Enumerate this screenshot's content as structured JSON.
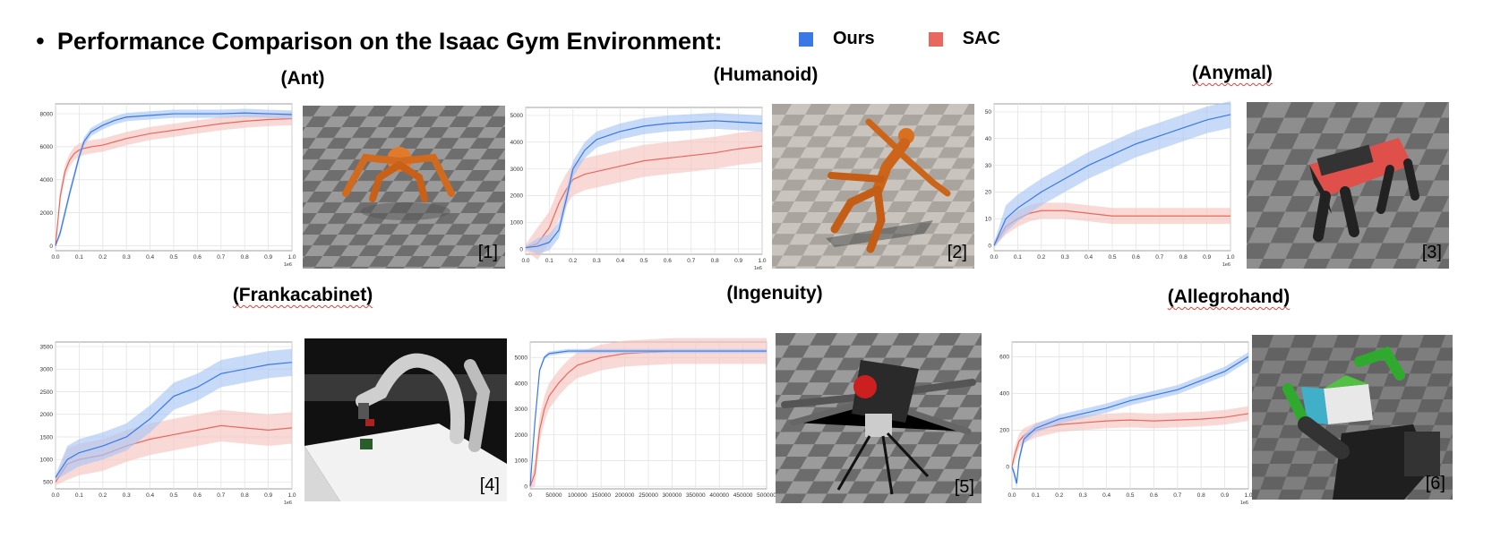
{
  "header": {
    "bullet": "•",
    "title": "Performance Comparison on the Isaac Gym Environment:"
  },
  "legend": [
    {
      "label": "Ours",
      "color": "#3a78e6"
    },
    {
      "label": "SAC",
      "color": "#e8675e"
    }
  ],
  "colors": {
    "ours": "#3a78e6",
    "sac": "#e8675e",
    "ours_band": "#a9c6f5",
    "sac_band": "#f6c4c0"
  },
  "panels": [
    {
      "title": "(Ant)",
      "ref": "[1]"
    },
    {
      "title": "(Humanoid)",
      "ref": "[2]"
    },
    {
      "title": "(Anymal)",
      "ref": "[3]"
    },
    {
      "title": "(Frankacabinet)",
      "ref": "[4]"
    },
    {
      "title": "(Ingenuity)",
      "ref": "[5]"
    },
    {
      "title": "(Allegrohand)",
      "ref": "[6]"
    }
  ],
  "chart_data": [
    {
      "type": "line",
      "title": "(Ant)",
      "xlim": [
        0,
        1.0
      ],
      "ylim": [
        -300,
        8600
      ],
      "xticks": [
        "0.0",
        "0.1",
        "0.2",
        "0.3",
        "0.4",
        "0.5",
        "0.6",
        "0.7",
        "0.8",
        "0.9",
        "1.0"
      ],
      "xtick_vals": [
        0,
        0.1,
        0.2,
        0.3,
        0.4,
        0.5,
        0.6,
        0.7,
        0.8,
        0.9,
        1.0
      ],
      "yticks": [
        "0",
        "2000",
        "4000",
        "6000",
        "8000"
      ],
      "ytick_vals": [
        0,
        2000,
        4000,
        6000,
        8000
      ],
      "xscale_label": "1e6",
      "grid": true,
      "x": [
        0,
        0.02,
        0.04,
        0.06,
        0.08,
        0.1,
        0.12,
        0.15,
        0.2,
        0.25,
        0.3,
        0.4,
        0.5,
        0.6,
        0.7,
        0.8,
        0.9,
        1.0
      ],
      "series": [
        {
          "name": "Ours",
          "values": [
            0,
            800,
            2000,
            3200,
            4300,
            5400,
            6300,
            6900,
            7300,
            7600,
            7800,
            7900,
            8000,
            8000,
            8000,
            8050,
            8000,
            7950
          ],
          "band": 250
        },
        {
          "name": "SAC",
          "values": [
            0,
            3000,
            4500,
            5200,
            5600,
            5800,
            5900,
            6000,
            6100,
            6300,
            6500,
            6800,
            7000,
            7200,
            7400,
            7550,
            7650,
            7700
          ],
          "band": 400
        }
      ]
    },
    {
      "type": "line",
      "title": "(Humanoid)",
      "xlim": [
        0,
        1.0
      ],
      "ylim": [
        -200,
        5300
      ],
      "xticks": [
        "0.0",
        "0.1",
        "0.2",
        "0.3",
        "0.4",
        "0.5",
        "0.6",
        "0.7",
        "0.8",
        "0.9",
        "1.0"
      ],
      "xtick_vals": [
        0,
        0.1,
        0.2,
        0.3,
        0.4,
        0.5,
        0.6,
        0.7,
        0.8,
        0.9,
        1.0
      ],
      "yticks": [
        "0",
        "1000",
        "2000",
        "3000",
        "4000",
        "5000"
      ],
      "ytick_vals": [
        0,
        1000,
        2000,
        3000,
        4000,
        5000
      ],
      "xscale_label": "1e6",
      "grid": true,
      "x": [
        0,
        0.05,
        0.1,
        0.14,
        0.17,
        0.2,
        0.25,
        0.3,
        0.4,
        0.5,
        0.6,
        0.7,
        0.8,
        0.9,
        1.0
      ],
      "series": [
        {
          "name": "Ours",
          "values": [
            50,
            100,
            250,
            700,
            1800,
            3000,
            3700,
            4100,
            4400,
            4600,
            4700,
            4750,
            4800,
            4750,
            4700
          ],
          "band": 300
        },
        {
          "name": "SAC",
          "values": [
            50,
            200,
            800,
            1700,
            2200,
            2600,
            2800,
            2900,
            3100,
            3300,
            3400,
            3500,
            3600,
            3750,
            3850
          ],
          "band": 600
        }
      ]
    },
    {
      "type": "line",
      "title": "(Anymal)",
      "xlim": [
        0,
        1.0
      ],
      "ylim": [
        -2,
        53
      ],
      "xticks": [
        "0.0",
        "0.1",
        "0.2",
        "0.3",
        "0.4",
        "0.5",
        "0.6",
        "0.7",
        "0.8",
        "0.9",
        "1.0"
      ],
      "xtick_vals": [
        0,
        0.1,
        0.2,
        0.3,
        0.4,
        0.5,
        0.6,
        0.7,
        0.8,
        0.9,
        1.0
      ],
      "yticks": [
        "0",
        "10",
        "20",
        "30",
        "40",
        "50"
      ],
      "ytick_vals": [
        0,
        10,
        20,
        30,
        40,
        50
      ],
      "xscale_label": "1e6",
      "grid": true,
      "x": [
        0,
        0.05,
        0.1,
        0.15,
        0.2,
        0.3,
        0.4,
        0.5,
        0.6,
        0.7,
        0.8,
        0.9,
        1.0
      ],
      "series": [
        {
          "name": "Ours",
          "values": [
            0,
            10,
            14,
            17,
            20,
            25,
            30,
            34,
            38,
            41,
            44,
            47,
            49
          ],
          "band": 5
        },
        {
          "name": "SAC",
          "values": [
            0,
            7,
            10,
            12,
            13,
            13,
            12,
            11,
            11,
            11,
            11,
            11,
            11
          ],
          "band": 3
        }
      ]
    },
    {
      "type": "line",
      "title": "(Frankacabinet)",
      "xlim": [
        0,
        1.0
      ],
      "ylim": [
        350,
        3600
      ],
      "xticks": [
        "0.0",
        "0.1",
        "0.2",
        "0.3",
        "0.4",
        "0.5",
        "0.6",
        "0.7",
        "0.8",
        "0.9",
        "1.0"
      ],
      "xtick_vals": [
        0,
        0.1,
        0.2,
        0.3,
        0.4,
        0.5,
        0.6,
        0.7,
        0.8,
        0.9,
        1.0
      ],
      "yticks": [
        "500",
        "1000",
        "1500",
        "2000",
        "2500",
        "3000",
        "3500"
      ],
      "ytick_vals": [
        500,
        1000,
        1500,
        2000,
        2500,
        3000,
        3500
      ],
      "xscale_label": "1e6",
      "grid": true,
      "x": [
        0,
        0.05,
        0.1,
        0.2,
        0.3,
        0.4,
        0.5,
        0.6,
        0.7,
        0.8,
        0.9,
        1.0
      ],
      "series": [
        {
          "name": "Ours",
          "values": [
            600,
            1000,
            1150,
            1300,
            1500,
            1900,
            2400,
            2600,
            2900,
            3000,
            3100,
            3150
          ],
          "band": 300
        },
        {
          "name": "SAC",
          "values": [
            500,
            900,
            1000,
            1100,
            1300,
            1450,
            1550,
            1650,
            1750,
            1700,
            1650,
            1700
          ],
          "band": 350
        }
      ]
    },
    {
      "type": "line",
      "title": "(Ingenuity)",
      "xlim": [
        0,
        500000
      ],
      "ylim": [
        -100,
        5600
      ],
      "xticks": [
        "0",
        "50000",
        "100000",
        "150000",
        "200000",
        "250000",
        "300000",
        "350000",
        "400000",
        "450000",
        "500000"
      ],
      "xtick_vals": [
        0,
        50000,
        100000,
        150000,
        200000,
        250000,
        300000,
        350000,
        400000,
        450000,
        500000
      ],
      "grid": true,
      "x": [
        0,
        10000,
        20000,
        30000,
        40000,
        60000,
        80000,
        100000,
        150000,
        200000,
        250000,
        300000,
        400000,
        500000
      ],
      "series": [
        {
          "name": "Ours",
          "values": [
            0,
            2500,
            4500,
            5000,
            5150,
            5200,
            5250,
            5250,
            5250,
            5250,
            5250,
            5250,
            5250,
            5250
          ],
          "band": 80
        },
        {
          "name": "SAC",
          "values": [
            0,
            500,
            2200,
            3000,
            3500,
            4000,
            4400,
            4700,
            5000,
            5150,
            5200,
            5250,
            5250,
            5250
          ],
          "band": 500
        }
      ],
      "yticks": [
        "0",
        "1000",
        "2000",
        "3000",
        "4000",
        "5000"
      ],
      "ytick_vals": [
        0,
        1000,
        2000,
        3000,
        4000,
        5000
      ]
    },
    {
      "type": "line",
      "title": "(Allegrohand)",
      "xlim": [
        0,
        1.0
      ],
      "ylim": [
        -120,
        680
      ],
      "xticks": [
        "0.0",
        "0.1",
        "0.2",
        "0.3",
        "0.4",
        "0.5",
        "0.6",
        "0.7",
        "0.8",
        "0.9",
        "1.0"
      ],
      "xtick_vals": [
        0,
        0.1,
        0.2,
        0.3,
        0.4,
        0.5,
        0.6,
        0.7,
        0.8,
        0.9,
        1.0
      ],
      "yticks": [
        "0",
        "200",
        "400",
        "600"
      ],
      "ytick_vals": [
        0,
        200,
        400,
        600
      ],
      "xscale_label": "1e6",
      "grid": true,
      "x": [
        0,
        0.01,
        0.02,
        0.03,
        0.05,
        0.1,
        0.2,
        0.3,
        0.4,
        0.5,
        0.6,
        0.7,
        0.8,
        0.9,
        1.0
      ],
      "series": [
        {
          "name": "Ours",
          "values": [
            0,
            -40,
            -90,
            40,
            150,
            210,
            260,
            290,
            320,
            360,
            390,
            420,
            470,
            520,
            600
          ],
          "band": 25
        },
        {
          "name": "SAC",
          "values": [
            0,
            60,
            100,
            140,
            170,
            200,
            230,
            240,
            250,
            255,
            250,
            255,
            260,
            270,
            290
          ],
          "band": 40
        }
      ]
    }
  ]
}
